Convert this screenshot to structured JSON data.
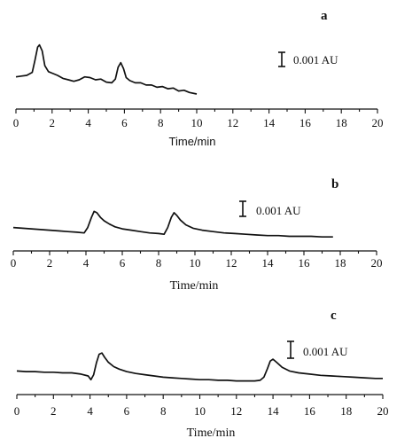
{
  "chart_data": [
    {
      "type": "line",
      "panel_label": "a",
      "xlabel": "Time/min",
      "xlim": [
        0,
        20
      ],
      "xticks": [
        "0",
        "2",
        "4",
        "6",
        "8",
        "10",
        "12",
        "14",
        "16",
        "18",
        "20"
      ],
      "ylabel": "",
      "scale_bar_label": "0.001 AU",
      "series": [
        {
          "x": [
            0,
            0.3,
            0.6,
            0.9,
            1.05,
            1.2,
            1.3,
            1.45,
            1.6,
            1.8,
            2.0,
            2.3,
            2.6,
            2.9,
            3.2,
            3.5,
            3.8,
            4.1,
            4.4,
            4.7,
            5.0,
            5.3,
            5.5,
            5.65,
            5.8,
            5.95,
            6.1,
            6.3,
            6.6,
            6.9,
            7.2,
            7.5,
            7.8,
            8.1,
            8.4,
            8.7,
            9.0,
            9.3,
            9.6,
            10.0
          ],
          "y": [
            0.0023,
            0.0024,
            0.0025,
            0.0029,
            0.0045,
            0.0063,
            0.0066,
            0.0058,
            0.0038,
            0.003,
            0.0028,
            0.0025,
            0.0021,
            0.0019,
            0.0017,
            0.0019,
            0.0023,
            0.0022,
            0.0019,
            0.002,
            0.0016,
            0.0015,
            0.002,
            0.0036,
            0.0042,
            0.0034,
            0.0022,
            0.0018,
            0.0015,
            0.0015,
            0.0012,
            0.0012,
            0.0009,
            0.001,
            0.0007,
            0.0008,
            0.0004,
            0.0005,
            0.0002,
            0.0
          ]
        }
      ]
    },
    {
      "type": "line",
      "panel_label": "b",
      "xlabel": "Time/min",
      "xlim": [
        0,
        20
      ],
      "xticks": [
        "0",
        "2",
        "4",
        "6",
        "8",
        "10",
        "12",
        "14",
        "16",
        "18",
        "20"
      ],
      "ylabel": "",
      "scale_bar_label": "0.001 AU",
      "series": [
        {
          "x": [
            0,
            0.5,
            1.0,
            1.5,
            2.0,
            2.5,
            3.0,
            3.5,
            3.9,
            4.1,
            4.3,
            4.45,
            4.6,
            4.8,
            5.0,
            5.3,
            5.6,
            6.0,
            6.5,
            7.0,
            7.5,
            8.0,
            8.3,
            8.5,
            8.7,
            8.85,
            9.0,
            9.2,
            9.5,
            9.9,
            10.4,
            11.0,
            11.6,
            12.2,
            12.8,
            13.4,
            14.0,
            14.6,
            15.2,
            15.8,
            16.4,
            17.0,
            17.6
          ],
          "y": [
            0.0015,
            0.0014,
            0.0013,
            0.0012,
            0.0011,
            0.001,
            0.0009,
            0.0008,
            0.0007,
            0.0015,
            0.003,
            0.0039,
            0.0037,
            0.003,
            0.0025,
            0.002,
            0.0016,
            0.0013,
            0.0011,
            0.0009,
            0.0007,
            0.0006,
            0.0005,
            0.0015,
            0.003,
            0.0037,
            0.0033,
            0.0026,
            0.0019,
            0.0014,
            0.0011,
            0.0009,
            0.0007,
            0.0006,
            0.0005,
            0.0004,
            0.0003,
            0.0003,
            0.0002,
            0.0002,
            0.0002,
            0.0001,
            0.0001
          ]
        }
      ]
    },
    {
      "type": "line",
      "panel_label": "c",
      "xlabel": "Time/min",
      "xlim": [
        0,
        20
      ],
      "xticks": [
        "0",
        "2",
        "4",
        "6",
        "8",
        "10",
        "12",
        "14",
        "16",
        "18",
        "20"
      ],
      "ylabel": "",
      "scale_bar_label": "0.001 AU",
      "series": [
        {
          "x": [
            0,
            0.5,
            1.0,
            1.5,
            2.0,
            2.5,
            3.0,
            3.5,
            3.9,
            4.05,
            4.2,
            4.35,
            4.5,
            4.65,
            4.8,
            5.0,
            5.3,
            5.6,
            6.0,
            6.5,
            7.0,
            7.5,
            8.0,
            8.5,
            9.0,
            9.5,
            10.0,
            10.5,
            11.0,
            11.5,
            12.0,
            12.5,
            13.0,
            13.3,
            13.5,
            13.7,
            13.85,
            14.0,
            14.2,
            14.5,
            14.9,
            15.4,
            16.0,
            16.6,
            17.2,
            17.8,
            18.4,
            19.0,
            19.6,
            20.0
          ],
          "y": [
            0.0018,
            0.0017,
            0.0017,
            0.0016,
            0.0016,
            0.0015,
            0.0015,
            0.0013,
            0.001,
            0.0004,
            0.0012,
            0.0031,
            0.0045,
            0.0047,
            0.004,
            0.0032,
            0.0025,
            0.0021,
            0.0017,
            0.0014,
            0.0012,
            0.001,
            0.0008,
            0.0007,
            0.0006,
            0.0005,
            0.0004,
            0.0004,
            0.0003,
            0.0003,
            0.0002,
            0.0002,
            0.0002,
            0.0003,
            0.0008,
            0.0022,
            0.0034,
            0.0037,
            0.0032,
            0.0024,
            0.0018,
            0.0015,
            0.0013,
            0.0011,
            0.001,
            0.0009,
            0.0008,
            0.0007,
            0.0006,
            0.0006
          ]
        }
      ]
    }
  ]
}
